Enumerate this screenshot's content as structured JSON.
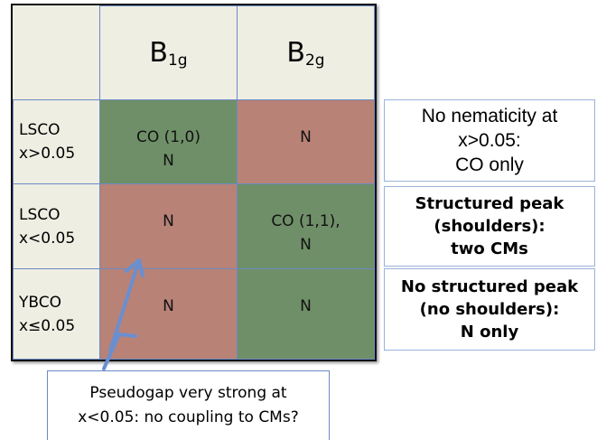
{
  "table": {
    "columns": [
      {
        "base": "B",
        "sub": "1g"
      },
      {
        "base": "B",
        "sub": "2g"
      }
    ],
    "rows": [
      {
        "label": [
          "LSCO",
          "x>0.05"
        ],
        "cells": [
          [
            "CO (1,0)",
            "N"
          ],
          [
            "N"
          ]
        ]
      },
      {
        "label": [
          "LSCO",
          "x<0.05"
        ],
        "cells": [
          [
            "N"
          ],
          [
            "CO (1,1),",
            "N"
          ]
        ]
      },
      {
        "label": [
          "YBCO",
          "x≤0.05"
        ],
        "cells": [
          [
            "N"
          ],
          [
            "N"
          ]
        ]
      }
    ]
  },
  "notes": [
    [
      "No nematicity at",
      "x>0.05:",
      "CO only"
    ],
    [
      "Structured peak",
      "(shoulders):",
      "two CMs"
    ],
    [
      "No structured peak",
      "(no shoulders):",
      "N only"
    ]
  ],
  "callout": [
    "Pseudogap very strong at",
    "x<0.05: no coupling to CMs?"
  ]
}
